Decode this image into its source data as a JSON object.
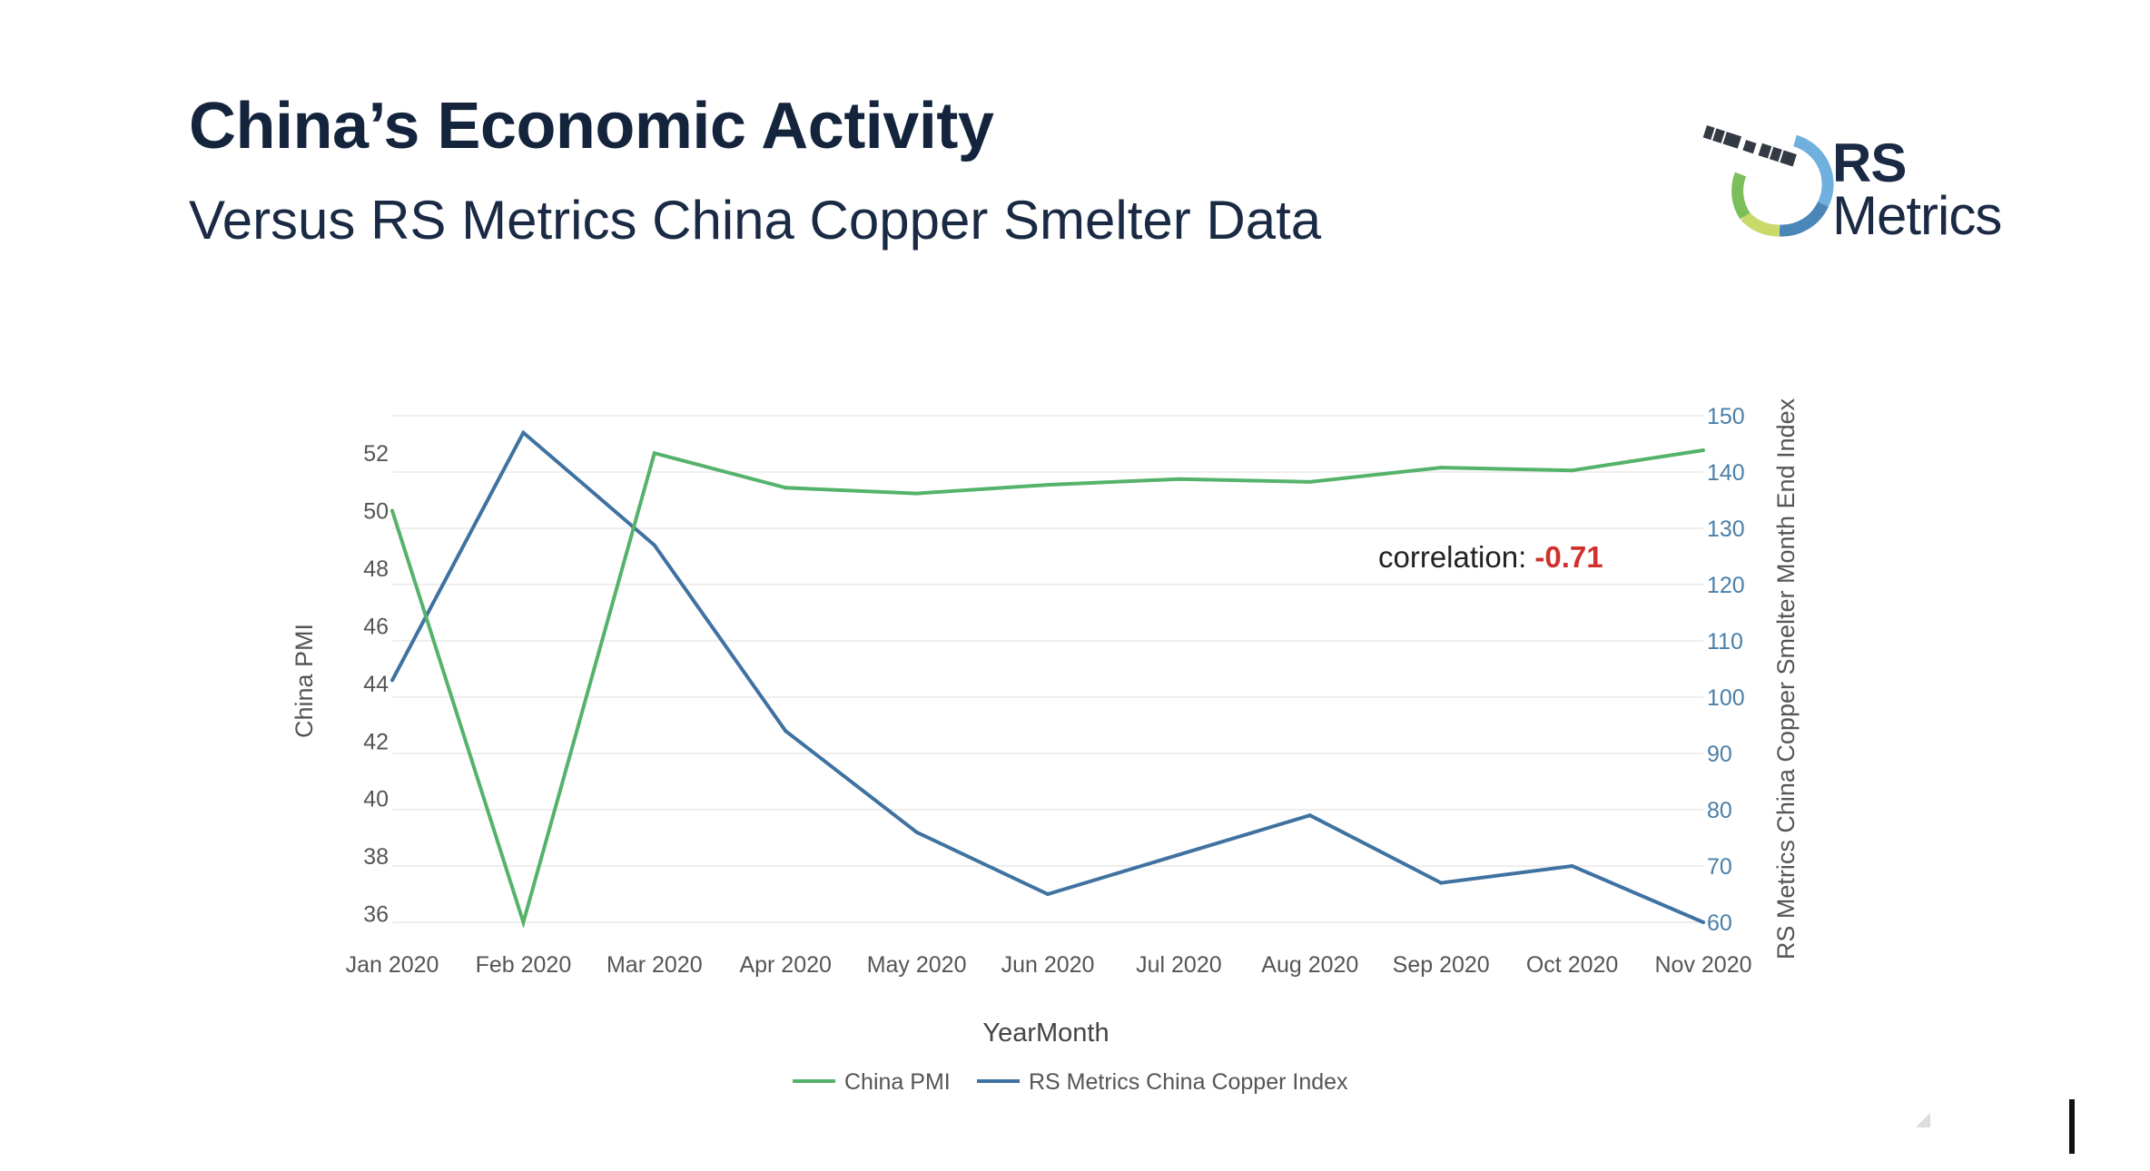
{
  "header": {
    "title": "China’s Economic Activity",
    "subtitle": "Versus RS Metrics China Copper Smelter Data"
  },
  "logo": {
    "line1": "RS",
    "line2": "Metrics",
    "colors": [
      "#4a86b8",
      "#7bbf5a",
      "#c9d96a",
      "#6fb0de"
    ]
  },
  "chart_data": {
    "type": "line",
    "categories": [
      "Jan 2020",
      "Feb 2020",
      "Mar 2020",
      "Apr 2020",
      "May 2020",
      "Jun 2020",
      "Jul 2020",
      "Aug 2020",
      "Sep 2020",
      "Oct 2020",
      "Nov 2020"
    ],
    "series": [
      {
        "name": "China PMI",
        "axis": "left",
        "color": "#55b26b",
        "values": [
          50.0,
          35.7,
          52.0,
          50.8,
          50.6,
          50.9,
          51.1,
          51.0,
          51.5,
          51.4,
          52.1
        ]
      },
      {
        "name": "RS Metrics China Copper Index",
        "axis": "right",
        "color": "#3f72a0",
        "values": [
          103,
          147,
          127,
          94,
          76,
          65,
          72,
          79,
          67,
          70,
          60
        ]
      }
    ],
    "xlabel": "YearMonth",
    "ylabel_left": "China PMI",
    "ylabel_right": "RS Metrics China Copper Smelter Month End Index",
    "yticks_left": [
      36,
      38,
      40,
      42,
      44,
      46,
      48,
      50,
      52
    ],
    "yticks_right": [
      60,
      70,
      80,
      90,
      100,
      110,
      120,
      130,
      140,
      150
    ],
    "ylim_left": [
      35.7,
      53.3
    ],
    "ylim_right": [
      60,
      150
    ],
    "grid": true,
    "legend": "bottom-center",
    "annotation": {
      "label": "correlation: ",
      "value": "-0.71",
      "value_color": "#d0312d"
    },
    "colors": {
      "axis_text_left": "#555555",
      "axis_text_right": "#4a7fa8",
      "grid": "#eeeeee"
    }
  }
}
